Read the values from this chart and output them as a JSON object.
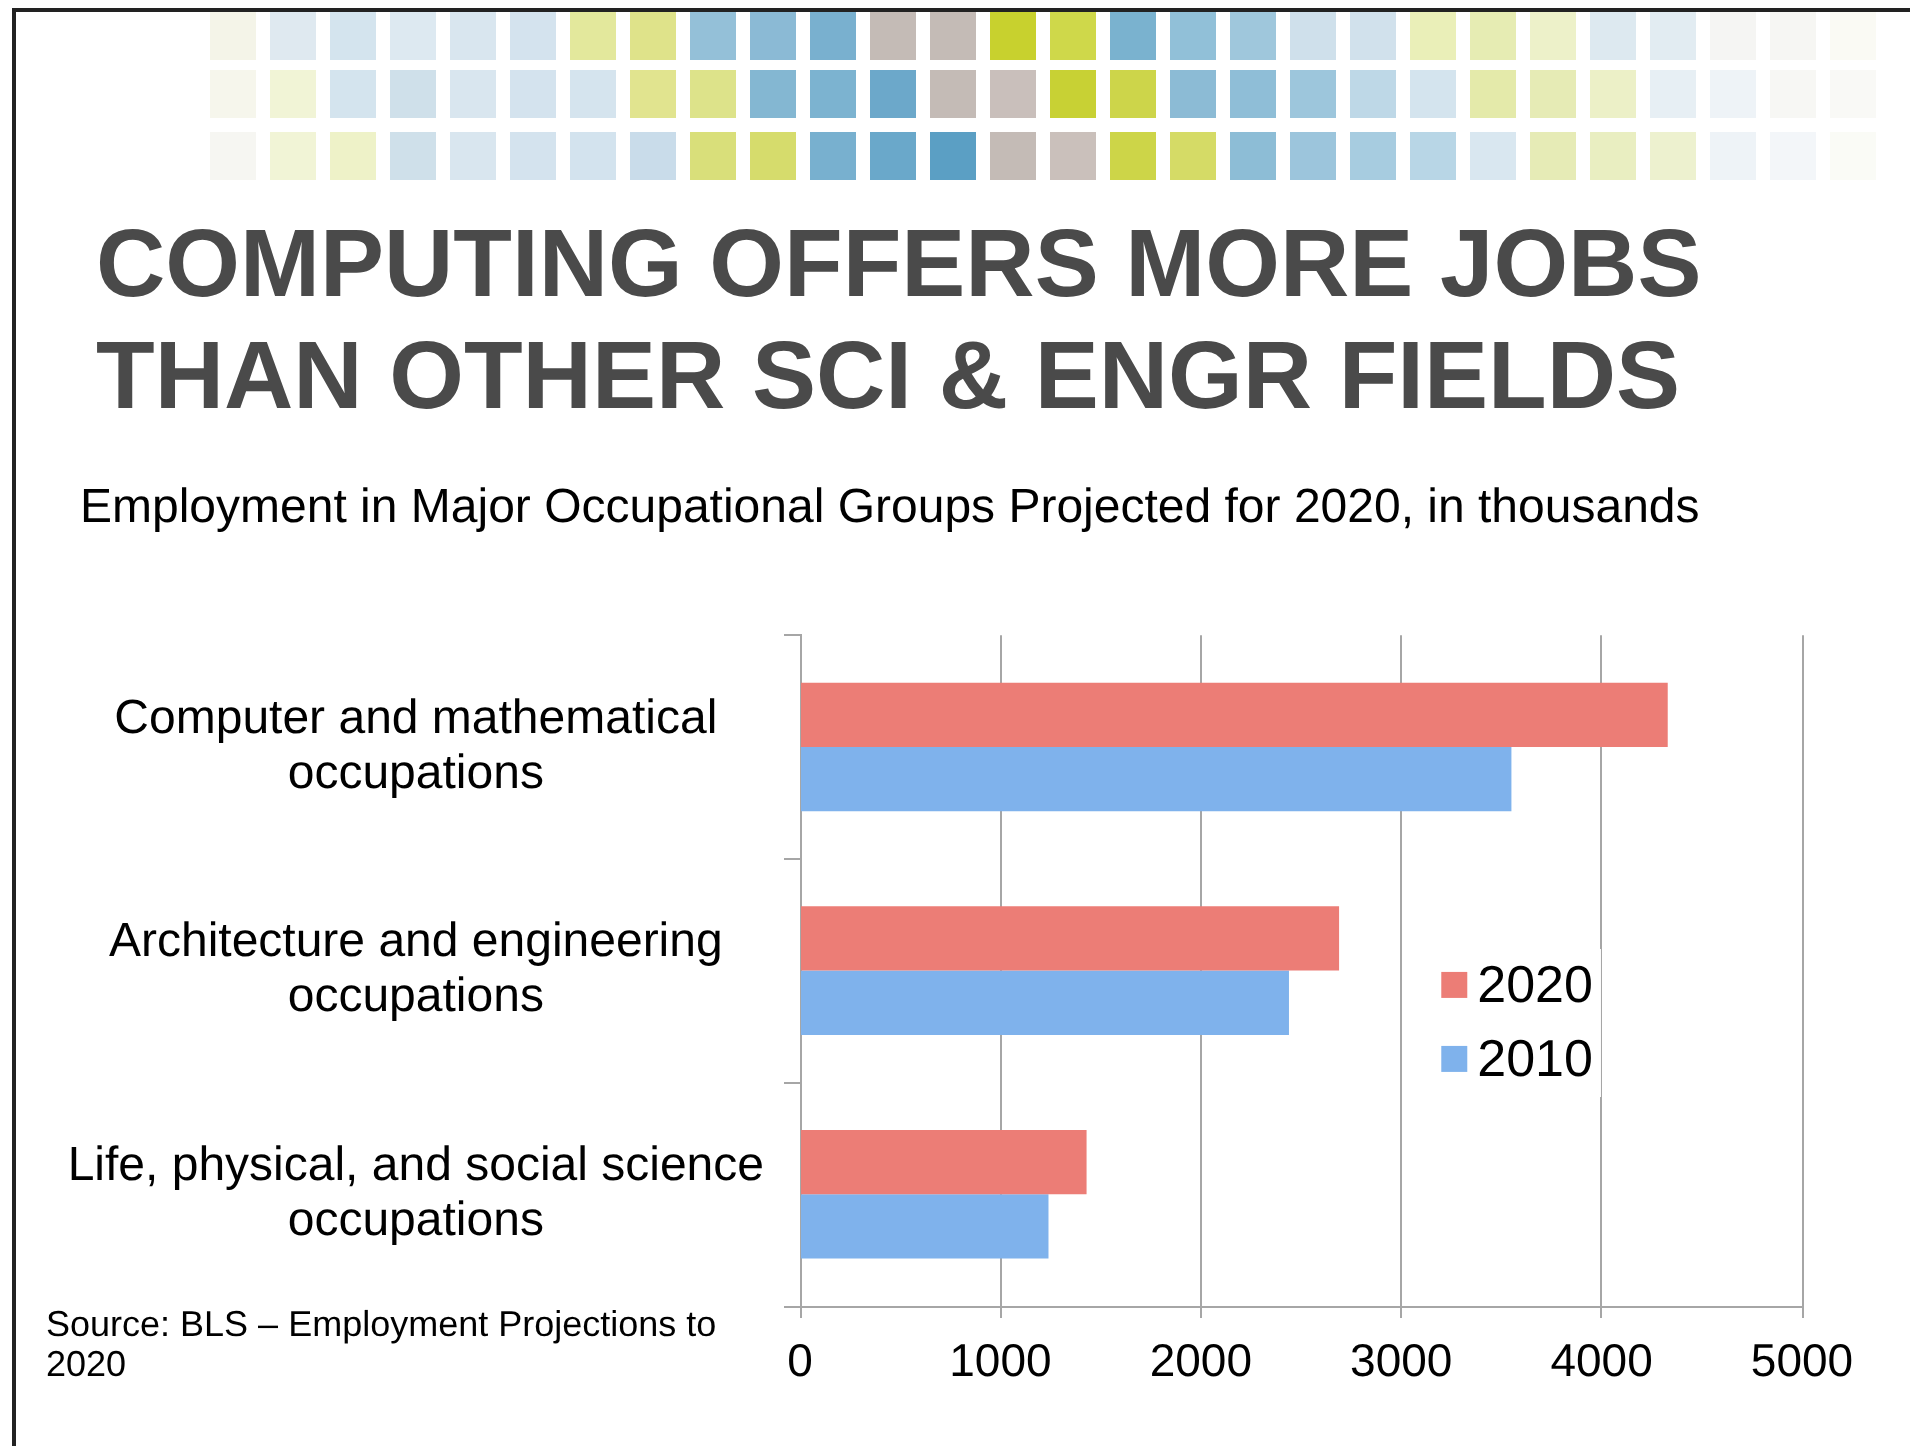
{
  "chart_data": {
    "type": "bar",
    "orientation": "horizontal",
    "title": "COMPUTING OFFERS MORE JOBS THAN OTHER SCI & ENGR FIELDS",
    "subtitle": "Employment in Major Occupational Groups Projected for 2020, in thousands",
    "categories": [
      "Computer and mathematical occupations",
      "Architecture and engineering occupations",
      "Life, physical, and social science occupations"
    ],
    "series": [
      {
        "name": "2020",
        "color": "#ec7d76",
        "values": [
          4330,
          2690,
          1430
        ]
      },
      {
        "name": "2010",
        "color": "#7fb2ec",
        "values": [
          3550,
          2440,
          1240
        ]
      }
    ],
    "xlim": [
      0,
      5000
    ],
    "xticks": [
      0,
      1000,
      2000,
      3000,
      4000,
      5000
    ],
    "grid": "x",
    "legend": "right",
    "annotations": [
      "Source: BLS – Employment Projections to 2020"
    ]
  }
}
